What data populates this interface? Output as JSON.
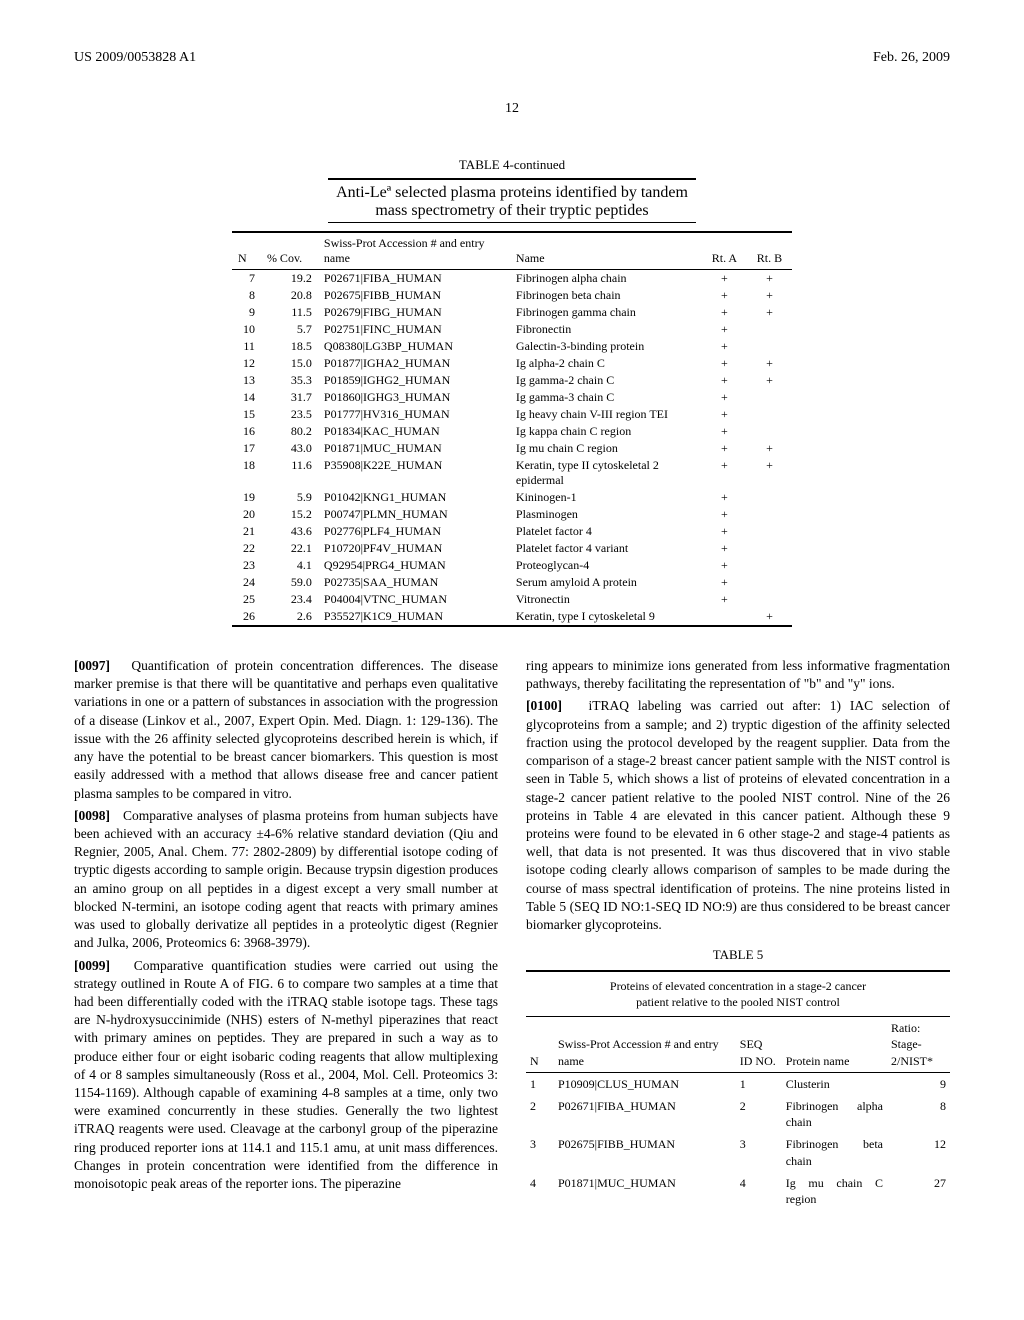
{
  "header": {
    "doc_number": "US 2009/0053828 A1",
    "date": "Feb. 26, 2009"
  },
  "page_number": "12",
  "table4": {
    "title": "TABLE 4-continued",
    "subtitle_line1": "Anti-Leª selected plasma proteins identified by tandem",
    "subtitle_line2": "mass spectrometry of their tryptic peptides",
    "columns": {
      "n": "N",
      "cov": "% Cov.",
      "accession": "Swiss-Prot Accession # and entry name",
      "name": "Name",
      "rta": "Rt. A",
      "rtb": "Rt. B"
    },
    "rows": [
      {
        "n": "7",
        "cov": "19.2",
        "acc": "P02671|FIBA_HUMAN",
        "name": "Fibrinogen alpha chain",
        "a": "+",
        "b": "+"
      },
      {
        "n": "8",
        "cov": "20.8",
        "acc": "P02675|FIBB_HUMAN",
        "name": "Fibrinogen beta chain",
        "a": "+",
        "b": "+"
      },
      {
        "n": "9",
        "cov": "11.5",
        "acc": "P02679|FIBG_HUMAN",
        "name": "Fibrinogen gamma chain",
        "a": "+",
        "b": "+"
      },
      {
        "n": "10",
        "cov": "5.7",
        "acc": "P02751|FINC_HUMAN",
        "name": "Fibronectin",
        "a": "+",
        "b": ""
      },
      {
        "n": "11",
        "cov": "18.5",
        "acc": "Q08380|LG3BP_HUMAN",
        "name": "Galectin-3-binding protein",
        "a": "+",
        "b": ""
      },
      {
        "n": "12",
        "cov": "15.0",
        "acc": "P01877|IGHA2_HUMAN",
        "name": "Ig alpha-2 chain C",
        "a": "+",
        "b": "+"
      },
      {
        "n": "13",
        "cov": "35.3",
        "acc": "P01859|IGHG2_HUMAN",
        "name": "Ig gamma-2 chain C",
        "a": "+",
        "b": "+"
      },
      {
        "n": "14",
        "cov": "31.7",
        "acc": "P01860|IGHG3_HUMAN",
        "name": "Ig gamma-3 chain C",
        "a": "+",
        "b": ""
      },
      {
        "n": "15",
        "cov": "23.5",
        "acc": "P01777|HV316_HUMAN",
        "name": "Ig heavy chain V-III region TEI",
        "a": "+",
        "b": ""
      },
      {
        "n": "16",
        "cov": "80.2",
        "acc": "P01834|KAC_HUMAN",
        "name": "Ig kappa chain C region",
        "a": "+",
        "b": ""
      },
      {
        "n": "17",
        "cov": "43.0",
        "acc": "P01871|MUC_HUMAN",
        "name": "Ig mu chain C region",
        "a": "+",
        "b": "+"
      },
      {
        "n": "18",
        "cov": "11.6",
        "acc": "P35908|K22E_HUMAN",
        "name": "Keratin, type II cytoskeletal 2 epidermal",
        "a": "+",
        "b": "+"
      },
      {
        "n": "19",
        "cov": "5.9",
        "acc": "P01042|KNG1_HUMAN",
        "name": "Kininogen-1",
        "a": "+",
        "b": ""
      },
      {
        "n": "20",
        "cov": "15.2",
        "acc": "P00747|PLMN_HUMAN",
        "name": "Plasminogen",
        "a": "+",
        "b": ""
      },
      {
        "n": "21",
        "cov": "43.6",
        "acc": "P02776|PLF4_HUMAN",
        "name": "Platelet factor 4",
        "a": "+",
        "b": ""
      },
      {
        "n": "22",
        "cov": "22.1",
        "acc": "P10720|PF4V_HUMAN",
        "name": "Platelet factor 4 variant",
        "a": "+",
        "b": ""
      },
      {
        "n": "23",
        "cov": "4.1",
        "acc": "Q92954|PRG4_HUMAN",
        "name": "Proteoglycan-4",
        "a": "+",
        "b": ""
      },
      {
        "n": "24",
        "cov": "59.0",
        "acc": "P02735|SAA_HUMAN",
        "name": "Serum amyloid A protein",
        "a": "+",
        "b": ""
      },
      {
        "n": "25",
        "cov": "23.4",
        "acc": "P04004|VTNC_HUMAN",
        "name": "Vitronectin",
        "a": "+",
        "b": ""
      },
      {
        "n": "26",
        "cov": "2.6",
        "acc": "P35527|K1C9_HUMAN",
        "name": "Keratin, type I cytoskeletal 9",
        "a": "",
        "b": "+"
      }
    ]
  },
  "paragraphs": {
    "p0097": "Quantification of protein concentration differences. The disease marker premise is that there will be quantitative and perhaps even qualitative variations in one or a pattern of substances in association with the progression of a disease (Linkov et al., 2007, Expert Opin. Med. Diagn. 1: 129-136). The issue with the 26 affinity selected glycoproteins described herein is which, if any have the potential to be breast cancer biomarkers. This question is most easily addressed with a method that allows disease free and cancer patient plasma samples to be compared in vitro.",
    "p0098": "Comparative analyses of plasma proteins from human subjects have been achieved with an accuracy ±4-6% relative standard deviation (Qiu and Regnier, 2005, Anal. Chem. 77: 2802-2809) by differential isotope coding of tryptic digests according to sample origin. Because trypsin digestion produces an amino group on all peptides in a digest except a very small number at blocked N-termini, an isotope coding agent that reacts with primary amines was used to globally derivatize all peptides in a proteolytic digest (Regnier and Julka, 2006, Proteomics 6: 3968-3979).",
    "p0099": "Comparative quantification studies were carried out using the strategy outlined in Route A of FIG. 6 to compare two samples at a time that had been differentially coded with the iTRAQ stable isotope tags. These tags are N-hydroxysuccinimide (NHS) esters of N-methyl piperazines that react with primary amines on peptides. They are prepared in such a way as to produce either four or eight isobaric coding reagents that allow multiplexing of 4 or 8 samples simultaneously (Ross et al., 2004, Mol. Cell. Proteomics 3: 1154-1169). Although capable of examining 4-8 samples at a time, only two were examined concurrently in these studies. Generally the two lightest iTRAQ reagents were used. Cleavage at the carbonyl group of the piperazine ring produced reporter ions at 114.1 and 115.1 amu, at unit mass differences. Changes in protein concentration were identified from the difference in monoisotopic peak areas of the reporter ions. The piperazine",
    "p0099_cont": "ring appears to minimize ions generated from less informative fragmentation pathways, thereby facilitating the representation of \"b\" and \"y\" ions.",
    "p0100": "iTRAQ labeling was carried out after: 1) IAC selection of glycoproteins from a sample; and 2) tryptic digestion of the affinity selected fraction using the protocol developed by the reagent supplier. Data from the comparison of a stage-2 breast cancer patient sample with the NIST control is seen in Table 5, which shows a list of proteins of elevated concentration in a stage-2 cancer patient relative to the pooled NIST control. Nine of the 26 proteins in Table 4 are elevated in this cancer patient. Although these 9 proteins were found to be elevated in 6 other stage-2 and stage-4 patients as well, that data is not presented. It was thus discovered that in vivo stable isotope coding clearly allows comparison of samples to be made during the course of mass spectral identification of proteins. The nine proteins listed in Table 5 (SEQ ID NO:1-SEQ ID NO:9) are thus considered to be breast cancer biomarker glycoproteins."
  },
  "labels": {
    "p0097": "[0097]",
    "p0098": "[0098]",
    "p0099": "[0099]",
    "p0100": "[0100]"
  },
  "table5": {
    "title": "TABLE 5",
    "subtitle_line1": "Proteins of elevated concentration in a stage-2 cancer",
    "subtitle_line2": "patient relative to the pooled NIST control",
    "columns": {
      "n": "N",
      "accession": "Swiss-Prot Accession # and entry name",
      "seqid": "SEQ ID NO.",
      "protein": "Protein name",
      "ratio": "Ratio: Stage-2/NIST*"
    },
    "rows": [
      {
        "n": "1",
        "acc": "P10909|CLUS_HUMAN",
        "seq": "1",
        "name": "Clusterin",
        "ratio": "9"
      },
      {
        "n": "2",
        "acc": "P02671|FIBA_HUMAN",
        "seq": "2",
        "name": "Fibrinogen alpha chain",
        "ratio": "8"
      },
      {
        "n": "3",
        "acc": "P02675|FIBB_HUMAN",
        "seq": "3",
        "name": "Fibrinogen beta chain",
        "ratio": "12"
      },
      {
        "n": "4",
        "acc": "P01871|MUC_HUMAN",
        "seq": "4",
        "name": "Ig mu chain C region",
        "ratio": "27"
      }
    ]
  }
}
